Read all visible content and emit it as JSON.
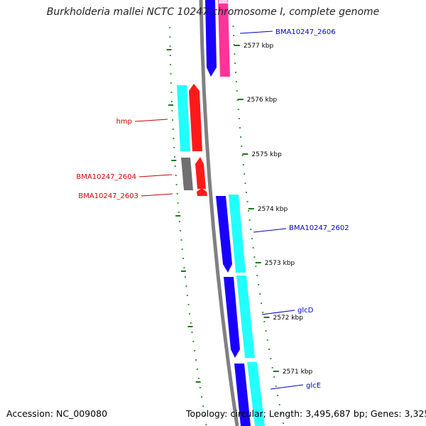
{
  "title": "Burkholderia mallei NCTC 10247 chromosome I, complete genome",
  "footer": {
    "accession": "Accession: NC_009080",
    "summary": "Topology: circular; Length: 3,495,687 bp; Genes: 3,325"
  },
  "colors": {
    "backbone": "#808080",
    "tick_major": "#1a7a1a",
    "tick_minor": "#3a9a3a",
    "forward_cds": "#1a00ff",
    "forward_gene": "#22ffff",
    "reverse_cds": "#ff1a1a",
    "reverse_gene": "#22ffff",
    "pink_cds": "#ff3399",
    "pseudo_gene": "#707070",
    "label_blue": "#0000cc",
    "label_red": "#cc0000",
    "tick_label": "#000000"
  },
  "ticks": [
    {
      "label": "2577 kbp"
    },
    {
      "label": "2576 kbp"
    },
    {
      "label": "2575 kbp"
    },
    {
      "label": "2574 kbp"
    },
    {
      "label": "2573 kbp"
    },
    {
      "label": "2572 kbp"
    },
    {
      "label": "2571 kbp"
    }
  ],
  "gene_labels": [
    {
      "name": "BMA10247_2606",
      "strand": "forward"
    },
    {
      "name": "hmp",
      "strand": "reverse"
    },
    {
      "name": "BMA10247_2604",
      "strand": "reverse"
    },
    {
      "name": "BMA10247_2603",
      "strand": "reverse"
    },
    {
      "name": "BMA10247_2602",
      "strand": "forward"
    },
    {
      "name": "glcD",
      "strand": "forward"
    },
    {
      "name": "glcE",
      "strand": "forward"
    }
  ]
}
